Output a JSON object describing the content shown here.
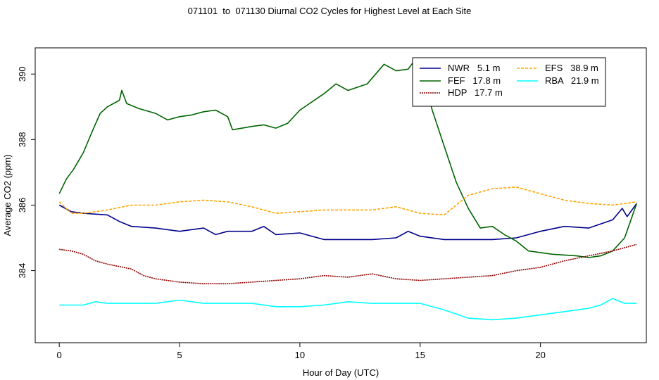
{
  "chart_data": {
    "type": "line",
    "title": "071101  to  071130 Diurnal CO2 Cycles for Highest Level at Each Site",
    "xlabel": "Hour of Day (UTC)",
    "ylabel": "Average CO2 (ppm)",
    "xlim": [
      -1,
      24.4
    ],
    "ylim": [
      381.8,
      390.8
    ],
    "xticks": [
      0,
      5,
      10,
      15,
      20
    ],
    "yticks": [
      384,
      386,
      388,
      390
    ],
    "xtick_labels": [
      "0",
      "5",
      "10",
      "15",
      "20"
    ],
    "ytick_labels": [
      "384",
      "386",
      "388",
      "390"
    ],
    "grid": false,
    "legend_position": "top-right",
    "series": [
      {
        "name": "NWR   5.1 m",
        "color": "#00008b",
        "dash": "",
        "points": [
          [
            0,
            386.0
          ],
          [
            0.5,
            385.8
          ],
          [
            1,
            385.75
          ],
          [
            2,
            385.7
          ],
          [
            2.5,
            385.5
          ],
          [
            3,
            385.35
          ],
          [
            4,
            385.3
          ],
          [
            5,
            385.2
          ],
          [
            6,
            385.3
          ],
          [
            6.5,
            385.1
          ],
          [
            7,
            385.2
          ],
          [
            8,
            385.2
          ],
          [
            8.5,
            385.35
          ],
          [
            9,
            385.1
          ],
          [
            10,
            385.15
          ],
          [
            11,
            384.95
          ],
          [
            12,
            384.95
          ],
          [
            13,
            384.95
          ],
          [
            14,
            385.0
          ],
          [
            14.5,
            385.2
          ],
          [
            15,
            385.05
          ],
          [
            16,
            384.95
          ],
          [
            17,
            384.95
          ],
          [
            18,
            384.95
          ],
          [
            19,
            385.0
          ],
          [
            20,
            385.2
          ],
          [
            21,
            385.35
          ],
          [
            22,
            385.3
          ],
          [
            23,
            385.55
          ],
          [
            23.4,
            385.9
          ],
          [
            23.6,
            385.65
          ],
          [
            24,
            386.05
          ]
        ]
      },
      {
        "name": "FEF   17.8 m",
        "color": "#006400",
        "dash": "",
        "points": [
          [
            0,
            386.35
          ],
          [
            0.3,
            386.8
          ],
          [
            0.6,
            387.1
          ],
          [
            1,
            387.6
          ],
          [
            1.4,
            388.3
          ],
          [
            1.7,
            388.8
          ],
          [
            2,
            389.0
          ],
          [
            2.5,
            389.2
          ],
          [
            2.6,
            389.5
          ],
          [
            2.8,
            389.1
          ],
          [
            3.3,
            388.95
          ],
          [
            4,
            388.8
          ],
          [
            4.5,
            388.6
          ],
          [
            5,
            388.7
          ],
          [
            5.5,
            388.75
          ],
          [
            6,
            388.85
          ],
          [
            6.5,
            388.9
          ],
          [
            7,
            388.7
          ],
          [
            7.2,
            388.3
          ],
          [
            8,
            388.4
          ],
          [
            8.5,
            388.45
          ],
          [
            9,
            388.35
          ],
          [
            9.5,
            388.5
          ],
          [
            10,
            388.9
          ],
          [
            11,
            389.4
          ],
          [
            11.5,
            389.7
          ],
          [
            12,
            389.5
          ],
          [
            12.8,
            389.7
          ],
          [
            13.5,
            390.3
          ],
          [
            14,
            390.1
          ],
          [
            14.5,
            390.15
          ],
          [
            14.8,
            390.45
          ],
          [
            15,
            390.2
          ],
          [
            15.5,
            388.9
          ],
          [
            16,
            387.8
          ],
          [
            16.5,
            386.7
          ],
          [
            17,
            385.9
          ],
          [
            17.5,
            385.3
          ],
          [
            18,
            385.35
          ],
          [
            18.5,
            385.1
          ],
          [
            19,
            384.9
          ],
          [
            19.5,
            384.6
          ],
          [
            20.5,
            384.5
          ],
          [
            21.5,
            384.45
          ],
          [
            22,
            384.4
          ],
          [
            22.5,
            384.45
          ],
          [
            23,
            384.6
          ],
          [
            23.5,
            385.0
          ],
          [
            24,
            386.05
          ]
        ]
      },
      {
        "name": "HDP   17.7 m",
        "color": "#8b0000",
        "dash": "2,1",
        "points": [
          [
            0,
            384.65
          ],
          [
            0.5,
            384.6
          ],
          [
            1,
            384.5
          ],
          [
            1.5,
            384.3
          ],
          [
            2,
            384.2
          ],
          [
            3,
            384.05
          ],
          [
            3.5,
            383.85
          ],
          [
            4,
            383.75
          ],
          [
            5,
            383.65
          ],
          [
            6,
            383.6
          ],
          [
            7,
            383.6
          ],
          [
            8,
            383.65
          ],
          [
            9,
            383.7
          ],
          [
            10,
            383.75
          ],
          [
            11,
            383.85
          ],
          [
            12,
            383.8
          ],
          [
            13,
            383.9
          ],
          [
            14,
            383.75
          ],
          [
            15,
            383.7
          ],
          [
            16,
            383.75
          ],
          [
            17,
            383.8
          ],
          [
            18,
            383.85
          ],
          [
            19,
            384.0
          ],
          [
            20,
            384.1
          ],
          [
            21,
            384.3
          ],
          [
            22,
            384.45
          ],
          [
            23,
            384.6
          ],
          [
            24,
            384.8
          ]
        ]
      },
      {
        "name": "EFS   38.9 m",
        "color": "#ffa500",
        "dash": "4,2",
        "points": [
          [
            0,
            386.1
          ],
          [
            0.5,
            385.75
          ],
          [
            1,
            385.75
          ],
          [
            2,
            385.85
          ],
          [
            3,
            386.0
          ],
          [
            4,
            386.0
          ],
          [
            5,
            386.1
          ],
          [
            6,
            386.15
          ],
          [
            7,
            386.1
          ],
          [
            8,
            385.95
          ],
          [
            9,
            385.75
          ],
          [
            10,
            385.8
          ],
          [
            11,
            385.85
          ],
          [
            12,
            385.85
          ],
          [
            13,
            385.85
          ],
          [
            14,
            385.95
          ],
          [
            15,
            385.75
          ],
          [
            16,
            385.7
          ],
          [
            16.5,
            386.0
          ],
          [
            17,
            386.3
          ],
          [
            18,
            386.5
          ],
          [
            19,
            386.55
          ],
          [
            20,
            386.35
          ],
          [
            21,
            386.15
          ],
          [
            22,
            386.05
          ],
          [
            23,
            386.0
          ],
          [
            24,
            386.1
          ]
        ]
      },
      {
        "name": "RBA   21.9 m",
        "color": "#00ffff",
        "dash": "",
        "points": [
          [
            0,
            382.95
          ],
          [
            1,
            382.95
          ],
          [
            1.5,
            383.05
          ],
          [
            2,
            383.0
          ],
          [
            3,
            383.0
          ],
          [
            4,
            383.0
          ],
          [
            5,
            383.1
          ],
          [
            6,
            383.0
          ],
          [
            7,
            383.0
          ],
          [
            8,
            383.0
          ],
          [
            9,
            382.9
          ],
          [
            10,
            382.9
          ],
          [
            11,
            382.95
          ],
          [
            12,
            383.05
          ],
          [
            13,
            383.0
          ],
          [
            14,
            383.0
          ],
          [
            15,
            383.0
          ],
          [
            16,
            382.8
          ],
          [
            17,
            382.55
          ],
          [
            18,
            382.5
          ],
          [
            19,
            382.55
          ],
          [
            20,
            382.65
          ],
          [
            21,
            382.75
          ],
          [
            22,
            382.85
          ],
          [
            22.5,
            382.95
          ],
          [
            23,
            383.15
          ],
          [
            23.5,
            383.0
          ],
          [
            24,
            383.0
          ]
        ]
      }
    ]
  }
}
